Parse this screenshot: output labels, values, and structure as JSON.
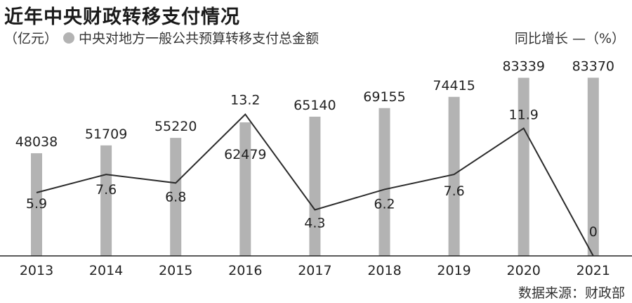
{
  "title": "近年中央财政转移支付情况",
  "unit_left": "（亿元）",
  "legend_bar": "中央对地方一般公共预算转移支付总金额",
  "legend_line": "同比增长 —（%）",
  "source": "数据来源：财政部",
  "colors": {
    "bar": "#b3b3b3",
    "line": "#2b2b2b",
    "axis": "#222222"
  },
  "chart_data": {
    "type": "bar",
    "categories": [
      "2013",
      "2014",
      "2015",
      "2016",
      "2017",
      "2018",
      "2019",
      "2020",
      "2021"
    ],
    "series": [
      {
        "name": "中央对地方一般公共预算转移支付总金额",
        "type": "bar",
        "values": [
          48038,
          51709,
          55220,
          62479,
          65140,
          69155,
          74415,
          83339,
          83370
        ]
      },
      {
        "name": "同比增长",
        "type": "line",
        "values": [
          5.9,
          7.6,
          6.8,
          13.2,
          4.3,
          6.2,
          7.6,
          11.9,
          0
        ]
      }
    ],
    "value_labels": {
      "bar": [
        "48038",
        "51709",
        "55220",
        "62479",
        "65140",
        "69155",
        "74415",
        "83339",
        "83370"
      ],
      "line": [
        "5.9",
        "7.6",
        "6.8",
        "13.2",
        "4.3",
        "6.2",
        "7.6",
        "11.9",
        "0"
      ]
    },
    "grid": false
  }
}
